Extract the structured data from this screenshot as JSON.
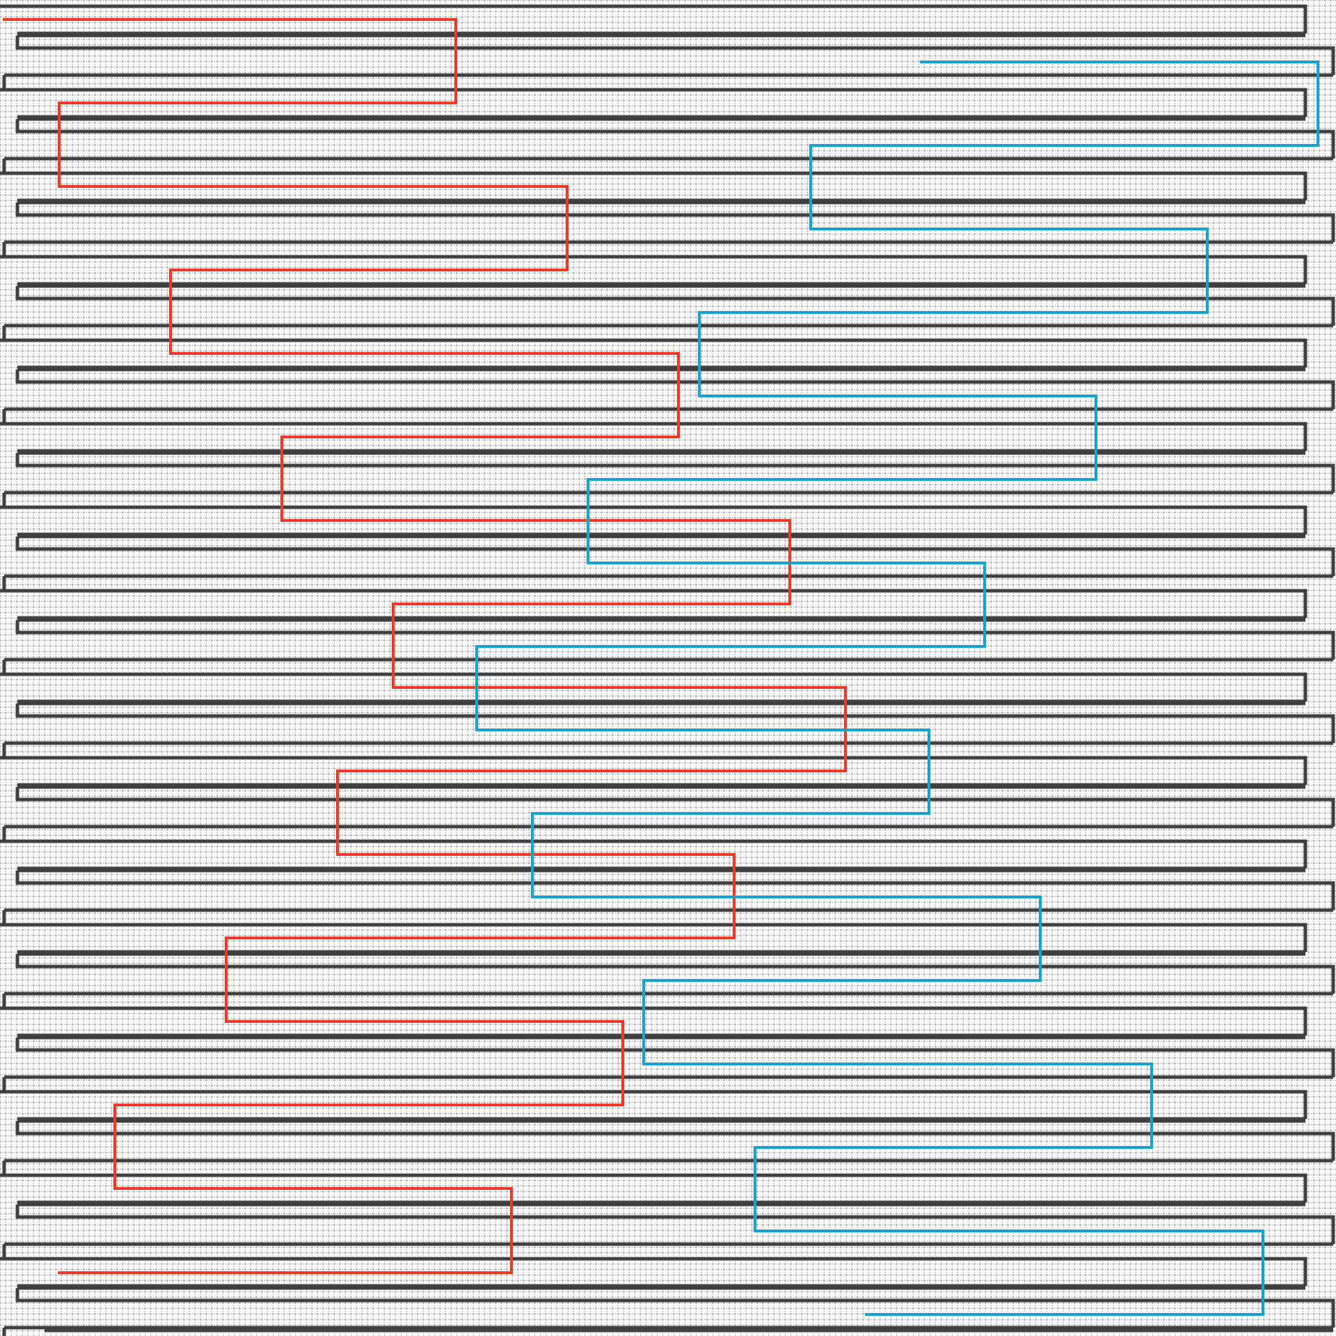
{
  "diagram": {
    "kind": "grid-path-puzzle",
    "grid": {
      "visible": true,
      "style": "dotted"
    },
    "colors": {
      "background": "#ffffff",
      "grid": "#222222",
      "wall": "#404040",
      "path_red": "#ef3b24",
      "path_cyan": "#12a6cf"
    },
    "paths": [
      {
        "id": "red",
        "color": "#ef3b24"
      },
      {
        "id": "cyan",
        "color": "#12a6cf"
      }
    ]
  }
}
